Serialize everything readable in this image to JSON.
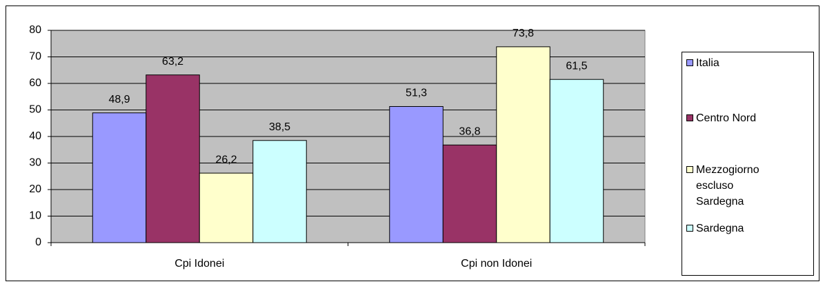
{
  "chart_data": {
    "type": "bar",
    "categories": [
      "Cpi Idonei",
      "Cpi non Idonei"
    ],
    "series": [
      {
        "name": "Italia",
        "color": "#9999ff",
        "values": [
          48.9,
          51.3
        ],
        "value_labels": [
          "48,9",
          "51,3"
        ]
      },
      {
        "name": "Centro Nord",
        "color": "#993366",
        "values": [
          63.2,
          36.8
        ],
        "value_labels": [
          "63,2",
          "36,8"
        ]
      },
      {
        "name": "Mezzogiorno escluso Sardegna",
        "color": "#ffffcc",
        "values": [
          26.2,
          73.8
        ],
        "value_labels": [
          "26,2",
          "73,8"
        ]
      },
      {
        "name": "Sardegna",
        "color": "#ccffff",
        "values": [
          38.5,
          61.5
        ],
        "value_labels": [
          "38,5",
          "61,5"
        ]
      }
    ],
    "ylim": [
      0,
      80
    ],
    "yticks": [
      0,
      10,
      20,
      30,
      40,
      50,
      60,
      70,
      80
    ],
    "grid": true,
    "legend": "right"
  }
}
